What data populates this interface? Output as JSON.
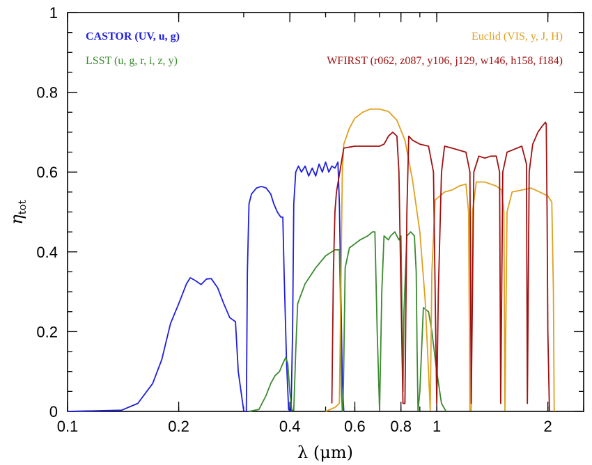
{
  "chart_data": {
    "type": "line",
    "xscale": "log",
    "xlim": [
      0.1,
      2.5
    ],
    "ylim": [
      0,
      1
    ],
    "xlabel": "λ (μm)",
    "ylabel_symbol": "η",
    "ylabel_sub": "tot",
    "xticks": [
      0.1,
      0.2,
      0.4,
      0.6,
      0.8,
      1,
      2
    ],
    "xtick_labels": [
      "0.1",
      "0.2",
      "0.4",
      "0.6",
      "0.8",
      "1",
      "2"
    ],
    "yticks": [
      0,
      0.2,
      0.4,
      0.6,
      0.8,
      1
    ],
    "ytick_labels": [
      "0",
      "0.2",
      "0.4",
      "0.6",
      "0.8",
      "1"
    ],
    "grid": false,
    "legend": [
      {
        "text": "CASTOR (UV, u, g)",
        "color": "#1f1fdd",
        "placement": "top-left",
        "bold": true
      },
      {
        "text": "LSST (u, g, r, i, z, y)",
        "color": "#3a8a2e",
        "placement": "top-left-second-row",
        "bold": false
      },
      {
        "text": "Euclid (VIS, y, J, H)",
        "color": "#e0a020",
        "placement": "top-right",
        "bold": false
      },
      {
        "text": "WFIRST (r062, z087, y106, j129, w146, h158, f184)",
        "color": "#a01010",
        "placement": "top-right-second-row",
        "bold": false
      }
    ],
    "series": [
      {
        "color": "#1f1fdd",
        "points": [
          [
            0.1,
            0
          ],
          [
            0.14,
            0.003
          ],
          [
            0.155,
            0.02
          ],
          [
            0.17,
            0.07
          ],
          [
            0.18,
            0.13
          ],
          [
            0.19,
            0.22
          ],
          [
            0.2,
            0.27
          ],
          [
            0.21,
            0.32
          ],
          [
            0.215,
            0.335
          ],
          [
            0.222,
            0.328
          ],
          [
            0.23,
            0.318
          ],
          [
            0.238,
            0.332
          ],
          [
            0.245,
            0.333
          ],
          [
            0.255,
            0.31
          ],
          [
            0.265,
            0.27
          ],
          [
            0.275,
            0.235
          ],
          [
            0.285,
            0.225
          ],
          [
            0.29,
            0.1
          ],
          [
            0.3,
            0.002
          ],
          [
            0.302,
            0
          ],
          [
            0.305,
            0
          ],
          [
            0.307,
            0.35
          ],
          [
            0.31,
            0.52
          ],
          [
            0.315,
            0.545
          ],
          [
            0.325,
            0.56
          ],
          [
            0.335,
            0.564
          ],
          [
            0.345,
            0.56
          ],
          [
            0.355,
            0.545
          ],
          [
            0.362,
            0.52
          ],
          [
            0.37,
            0.5
          ],
          [
            0.378,
            0.487
          ],
          [
            0.383,
            0.487
          ],
          [
            0.386,
            0.35
          ],
          [
            0.392,
            0.12
          ],
          [
            0.397,
            0.005
          ],
          [
            0.4,
            0.002
          ],
          [
            0.403,
            0
          ],
          [
            0.407,
            0.2
          ],
          [
            0.41,
            0.52
          ],
          [
            0.415,
            0.6
          ],
          [
            0.422,
            0.615
          ],
          [
            0.43,
            0.6
          ],
          [
            0.44,
            0.615
          ],
          [
            0.45,
            0.59
          ],
          [
            0.46,
            0.61
          ],
          [
            0.47,
            0.59
          ],
          [
            0.48,
            0.62
          ],
          [
            0.49,
            0.6
          ],
          [
            0.5,
            0.625
          ],
          [
            0.51,
            0.6
          ],
          [
            0.52,
            0.615
          ],
          [
            0.53,
            0.61
          ],
          [
            0.54,
            0.625
          ],
          [
            0.545,
            0.52
          ],
          [
            0.55,
            0.3
          ],
          [
            0.555,
            0.08
          ],
          [
            0.56,
            0
          ]
        ]
      },
      {
        "color": "#3a8a2e",
        "points": [
          [
            0.31,
            0
          ],
          [
            0.33,
            0.005
          ],
          [
            0.345,
            0.04
          ],
          [
            0.355,
            0.07
          ],
          [
            0.365,
            0.09
          ],
          [
            0.375,
            0.1
          ],
          [
            0.385,
            0.125
          ],
          [
            0.39,
            0.135
          ],
          [
            0.395,
            0.12
          ],
          [
            0.4,
            0.05
          ],
          [
            0.405,
            0.003
          ],
          [
            0.41,
            0.003
          ],
          [
            0.415,
            0.15
          ],
          [
            0.42,
            0.27
          ],
          [
            0.44,
            0.32
          ],
          [
            0.47,
            0.36
          ],
          [
            0.5,
            0.39
          ],
          [
            0.53,
            0.405
          ],
          [
            0.545,
            0.405
          ],
          [
            0.548,
            0.3
          ],
          [
            0.552,
            0.05
          ],
          [
            0.555,
            0.002
          ],
          [
            0.557,
            0
          ],
          [
            0.56,
            0.12
          ],
          [
            0.565,
            0.36
          ],
          [
            0.58,
            0.41
          ],
          [
            0.62,
            0.43
          ],
          [
            0.65,
            0.44
          ],
          [
            0.67,
            0.45
          ],
          [
            0.68,
            0.45
          ],
          [
            0.69,
            0.2
          ],
          [
            0.7,
            0.002
          ],
          [
            0.71,
            0.3
          ],
          [
            0.72,
            0.44
          ],
          [
            0.74,
            0.43
          ],
          [
            0.75,
            0.44
          ],
          [
            0.77,
            0.45
          ],
          [
            0.79,
            0.43
          ],
          [
            0.8,
            0.44
          ],
          [
            0.81,
            0.05
          ],
          [
            0.815,
            0.25
          ],
          [
            0.83,
            0.44
          ],
          [
            0.85,
            0.45
          ],
          [
            0.87,
            0.44
          ],
          [
            0.88,
            0.35
          ],
          [
            0.885,
            0.15
          ],
          [
            0.89,
            0.002
          ],
          [
            0.9,
            0.05
          ],
          [
            0.92,
            0.26
          ],
          [
            0.95,
            0.25
          ],
          [
            0.97,
            0.2
          ],
          [
            1.0,
            0.1
          ],
          [
            1.03,
            0.02
          ],
          [
            1.06,
            0
          ]
        ]
      },
      {
        "color": "#e0a020",
        "points": [
          [
            0.5,
            0
          ],
          [
            0.53,
            0.01
          ],
          [
            0.545,
            0.02
          ],
          [
            0.55,
            0.3
          ],
          [
            0.555,
            0.6
          ],
          [
            0.56,
            0.67
          ],
          [
            0.58,
            0.71
          ],
          [
            0.6,
            0.735
          ],
          [
            0.63,
            0.75
          ],
          [
            0.66,
            0.758
          ],
          [
            0.7,
            0.758
          ],
          [
            0.74,
            0.752
          ],
          [
            0.78,
            0.73
          ],
          [
            0.82,
            0.68
          ],
          [
            0.86,
            0.58
          ],
          [
            0.9,
            0.45
          ],
          [
            0.93,
            0.28
          ],
          [
            0.95,
            0.1
          ],
          [
            0.96,
            0.003
          ],
          [
            0.97,
            0.35
          ],
          [
            0.99,
            0.53
          ],
          [
            1.02,
            0.54
          ],
          [
            1.05,
            0.55
          ],
          [
            1.1,
            0.555
          ],
          [
            1.15,
            0.565
          ],
          [
            1.2,
            0.57
          ],
          [
            1.22,
            0.5
          ],
          [
            1.23,
            0.003
          ],
          [
            1.24,
            0.003
          ],
          [
            1.25,
            0.5
          ],
          [
            1.28,
            0.575
          ],
          [
            1.35,
            0.575
          ],
          [
            1.45,
            0.565
          ],
          [
            1.5,
            0.555
          ],
          [
            1.52,
            0.5
          ],
          [
            1.53,
            0.003
          ],
          [
            1.55,
            0.5
          ],
          [
            1.6,
            0.55
          ],
          [
            1.7,
            0.555
          ],
          [
            1.8,
            0.56
          ],
          [
            1.9,
            0.55
          ],
          [
            2.0,
            0.54
          ],
          [
            2.05,
            0.525
          ],
          [
            2.07,
            0.3
          ],
          [
            2.08,
            0
          ]
        ]
      },
      {
        "color": "#a01010",
        "points": [
          [
            0.52,
            0.02
          ],
          [
            0.525,
            0.35
          ],
          [
            0.53,
            0.5
          ],
          [
            0.535,
            0.55
          ],
          [
            0.56,
            0.66
          ],
          [
            0.6,
            0.665
          ],
          [
            0.65,
            0.665
          ],
          [
            0.7,
            0.665
          ],
          [
            0.72,
            0.67
          ],
          [
            0.73,
            0.68
          ],
          [
            0.74,
            0.69
          ],
          [
            0.76,
            0.7
          ],
          [
            0.78,
            0.69
          ],
          [
            0.79,
            0.6
          ],
          [
            0.8,
            0.3
          ],
          [
            0.81,
            0.02
          ],
          [
            0.82,
            0.02
          ],
          [
            0.83,
            0.5
          ],
          [
            0.84,
            0.69
          ],
          [
            0.86,
            0.68
          ],
          [
            0.9,
            0.67
          ],
          [
            0.95,
            0.665
          ],
          [
            0.98,
            0.6
          ],
          [
            0.99,
            0.3
          ],
          [
            1.0,
            0.02
          ],
          [
            1.01,
            0.3
          ],
          [
            1.03,
            0.6
          ],
          [
            1.05,
            0.665
          ],
          [
            1.1,
            0.66
          ],
          [
            1.15,
            0.655
          ],
          [
            1.2,
            0.65
          ],
          [
            1.23,
            0.6
          ],
          [
            1.24,
            0.02
          ],
          [
            1.26,
            0.6
          ],
          [
            1.3,
            0.64
          ],
          [
            1.35,
            0.635
          ],
          [
            1.4,
            0.64
          ],
          [
            1.45,
            0.64
          ],
          [
            1.48,
            0.6
          ],
          [
            1.49,
            0.02
          ],
          [
            1.51,
            0.6
          ],
          [
            1.55,
            0.65
          ],
          [
            1.6,
            0.655
          ],
          [
            1.65,
            0.66
          ],
          [
            1.7,
            0.665
          ],
          [
            1.75,
            0.62
          ],
          [
            1.76,
            0.02
          ],
          [
            1.78,
            0.6
          ],
          [
            1.82,
            0.67
          ],
          [
            1.88,
            0.7
          ],
          [
            1.93,
            0.715
          ],
          [
            1.97,
            0.725
          ],
          [
            1.98,
            0.72
          ],
          [
            1.99,
            0.5
          ],
          [
            2.0,
            0.2
          ],
          [
            2.02,
            0
          ]
        ]
      }
    ]
  }
}
